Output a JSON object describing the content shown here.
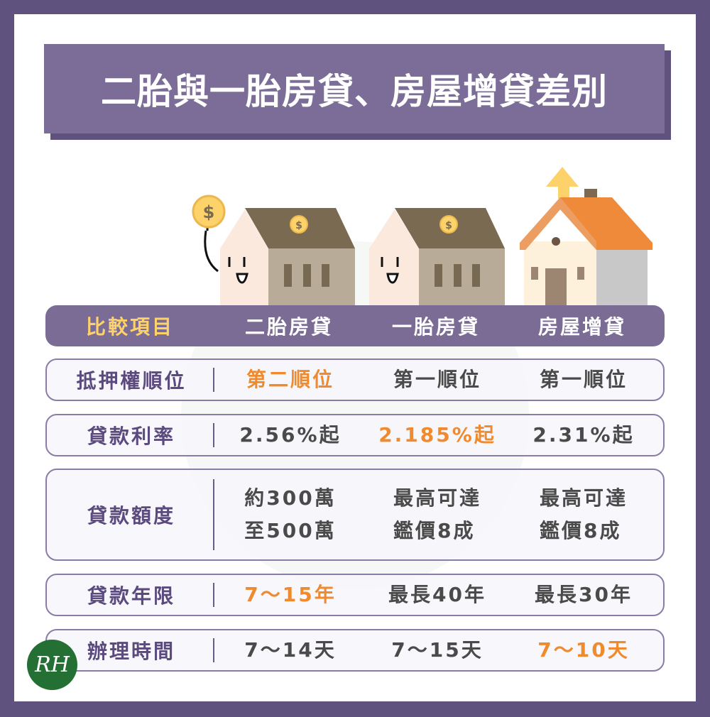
{
  "title": "二胎與一胎房貸、房屋增貸差別",
  "header": [
    "比較項目",
    "二胎房貸",
    "一胎房貸",
    "房屋增貸"
  ],
  "rows": [
    {
      "label": "抵押權順位",
      "values": [
        "第二順位",
        "第一順位",
        "第一順位"
      ],
      "highlight": 0
    },
    {
      "label": "貸款利率",
      "values": [
        "2.56%起",
        "2.185%起",
        "2.31%起"
      ],
      "highlight": 1
    },
    {
      "label": "貸款額度",
      "values": [
        [
          "約300萬",
          "至500萬"
        ],
        [
          "最高可達",
          "鑑價8成"
        ],
        [
          "最高可達",
          "鑑價8成"
        ]
      ],
      "highlight": -1
    },
    {
      "label": "貸款年限",
      "values": [
        "7～15年",
        "最長40年",
        "最長30年"
      ],
      "highlight": 0
    },
    {
      "label": "辦理時間",
      "values": [
        "7～14天",
        "7～15天",
        "7～10天"
      ],
      "highlight": 2
    }
  ],
  "logo": "RH",
  "colors": {
    "frame": "#5f527e",
    "header": "#7a6c95",
    "label": "#5a4a7e",
    "highlight": "#f08a2e",
    "header_first": "#fdd26b",
    "logo": "#246f34"
  }
}
